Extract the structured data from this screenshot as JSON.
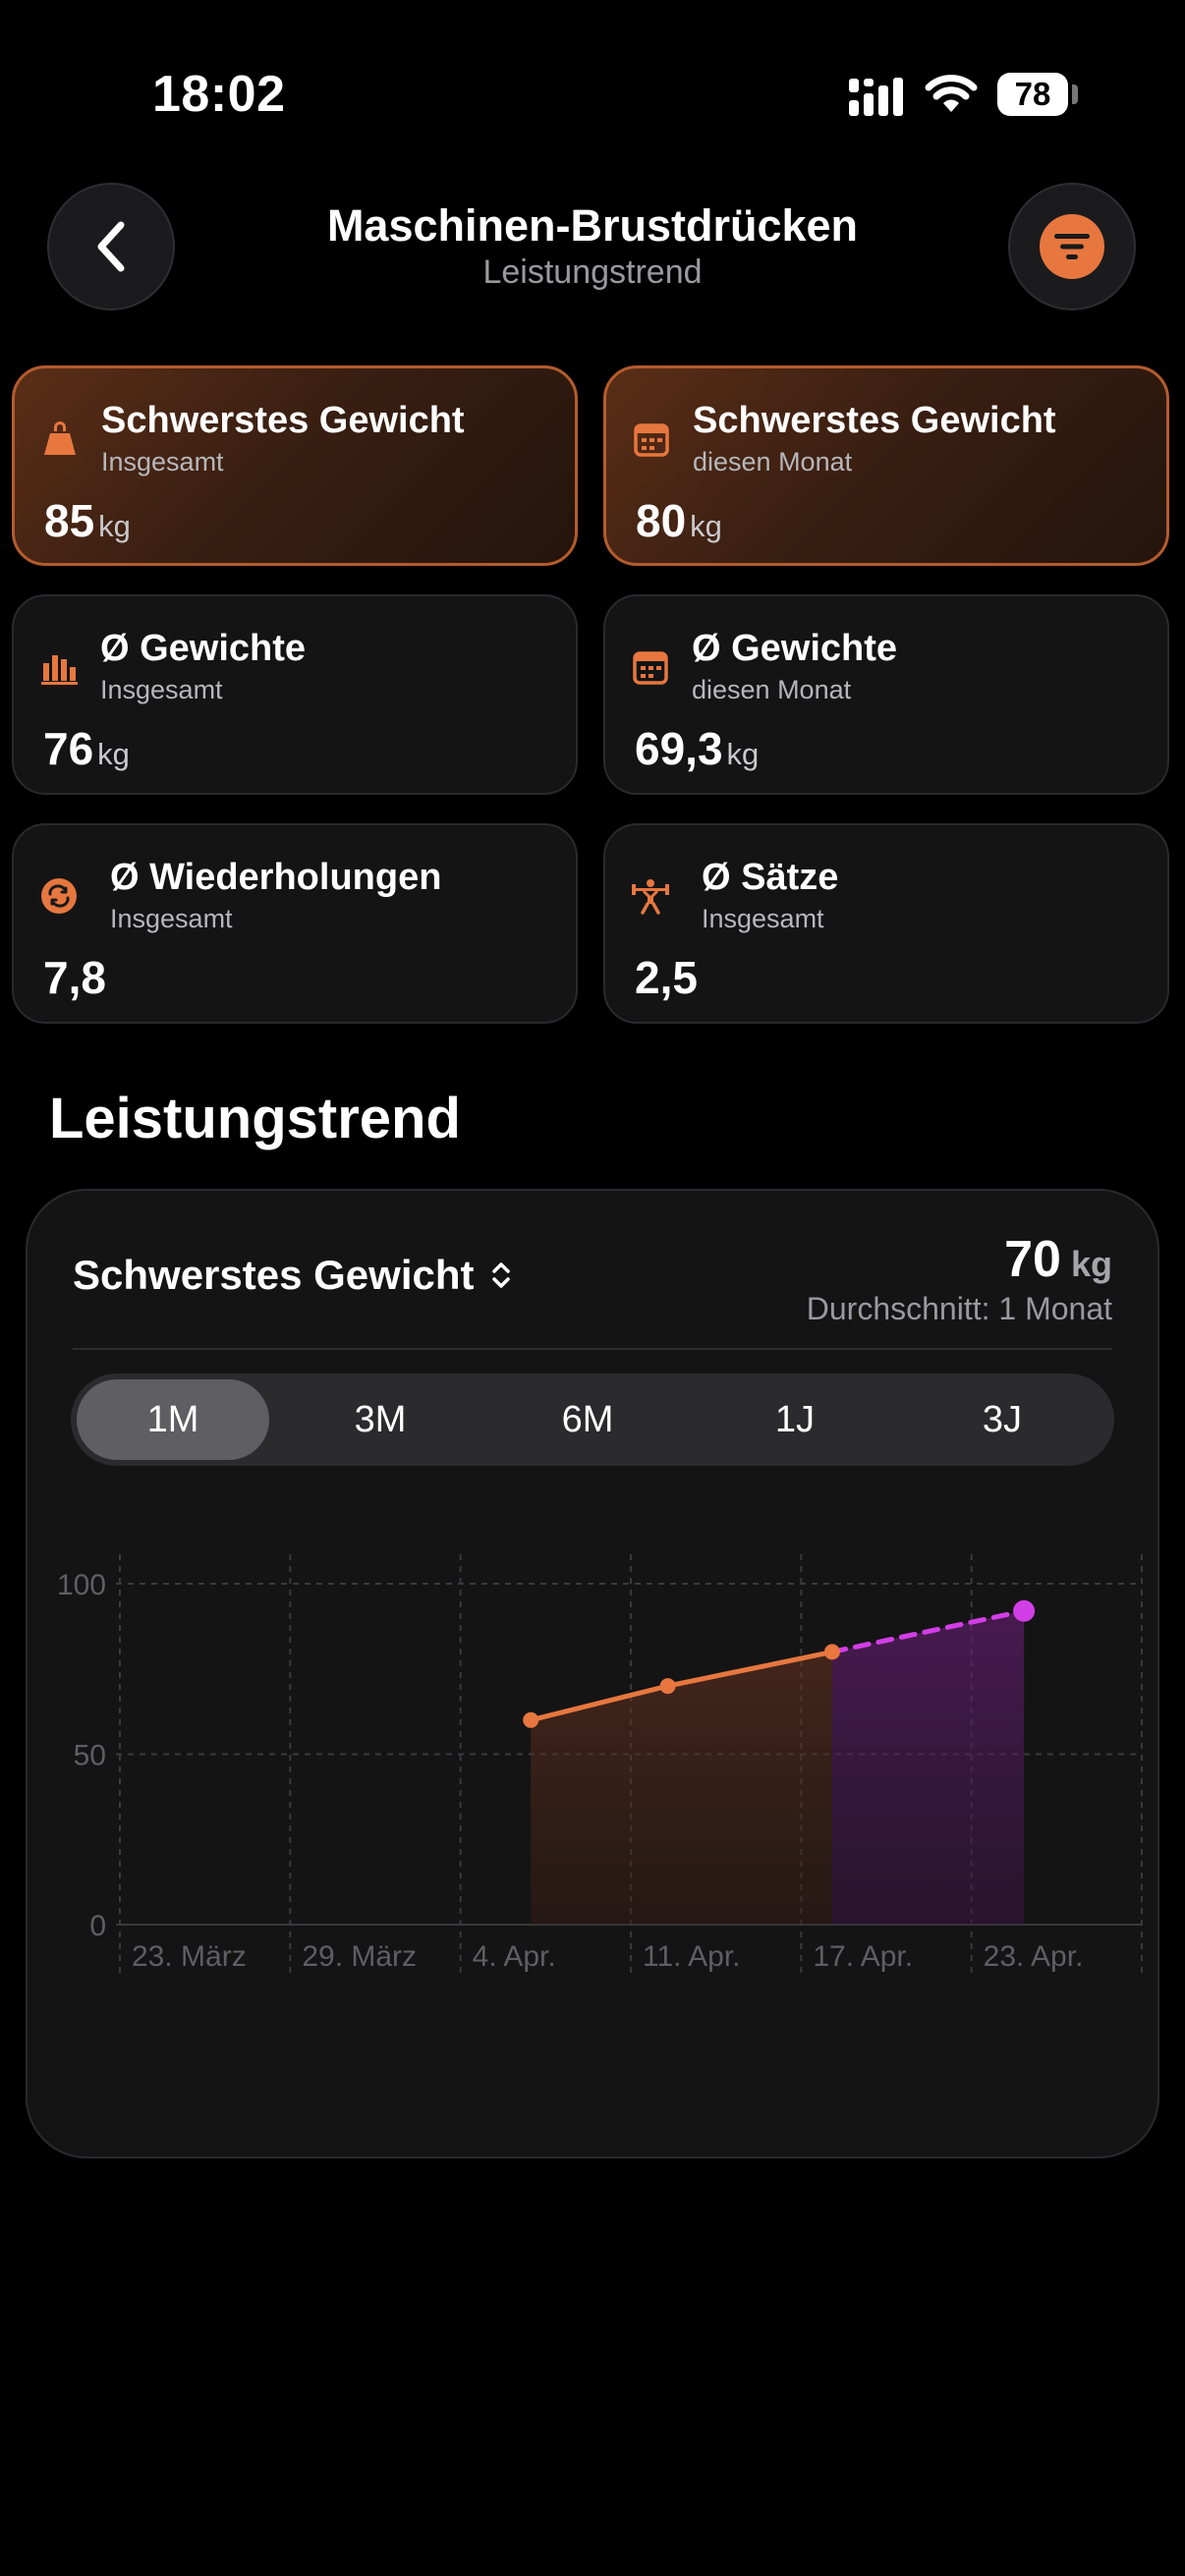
{
  "status": {
    "time": "18:02",
    "battery": "78"
  },
  "header": {
    "title": "Maschinen-Brustdrücken",
    "subtitle": "Leistungstrend"
  },
  "cards": [
    {
      "title": "Schwerstes Gewicht",
      "subtitle": "Insgesamt",
      "value": "85",
      "unit": "kg",
      "icon": "kettlebell-icon"
    },
    {
      "title": "Schwerstes Gewicht",
      "subtitle": "diesen Monat",
      "value": "80",
      "unit": "kg",
      "icon": "calendar-icon"
    },
    {
      "title": "Ø Gewichte",
      "subtitle": "Insgesamt",
      "value": "76",
      "unit": "kg",
      "icon": "bar-chart-icon"
    },
    {
      "title": "Ø Gewichte",
      "subtitle": "diesen Monat",
      "value": "69,3",
      "unit": "kg",
      "icon": "calendar-icon"
    },
    {
      "title": "Ø Wiederholungen",
      "subtitle": "Insgesamt",
      "value": "7,8",
      "unit": "",
      "icon": "repeat-icon"
    },
    {
      "title": "Ø Sätze",
      "subtitle": "Insgesamt",
      "value": "2,5",
      "unit": "",
      "icon": "weightlifter-icon"
    }
  ],
  "section_title": "Leistungstrend",
  "trend": {
    "metric": "Schwerstes Gewicht",
    "value": "70",
    "unit": "kg",
    "avg_label": "Durchschnitt: 1 Monat",
    "ranges": [
      "1M",
      "3M",
      "6M",
      "1J",
      "3J"
    ],
    "active_range": "1M"
  },
  "colors": {
    "accent": "#e7773f",
    "forecast": "#d23ee6"
  },
  "chart_data": {
    "type": "line",
    "x_ticks": [
      "23. März",
      "29. März",
      "4. Apr.",
      "11. Apr.",
      "17. Apr.",
      "23. Apr."
    ],
    "y_ticks": [
      "100",
      "50",
      "0"
    ],
    "ylim": [
      0,
      100
    ],
    "series": [
      {
        "values": [
          {
            "x": "7. Apr.",
            "y": 60
          },
          {
            "x": "12. Apr.",
            "y": 70
          },
          {
            "x": "18. Apr.",
            "y": 80
          }
        ]
      },
      {
        "style": "dashed",
        "values": [
          {
            "x": "18. Apr.",
            "y": 80
          },
          {
            "x": "25. Apr.",
            "y": 92
          }
        ]
      }
    ],
    "grid": true
  }
}
